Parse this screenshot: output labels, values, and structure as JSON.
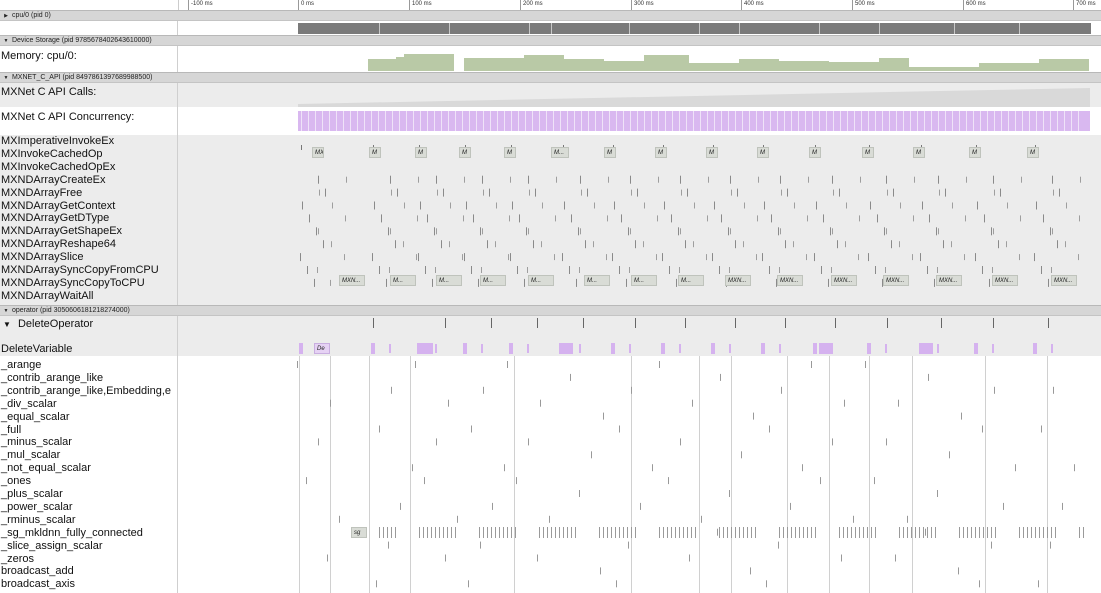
{
  "ruler": {
    "ticks": [
      {
        "label": "-100 ms",
        "x": 188
      },
      {
        "label": "0 ms",
        "x": 298
      },
      {
        "label": "100 ms",
        "x": 409
      },
      {
        "label": "200 ms",
        "x": 520
      },
      {
        "label": "300 ms",
        "x": 631
      },
      {
        "label": "400 ms",
        "x": 741
      },
      {
        "label": "500 ms",
        "x": 852
      },
      {
        "label": "600 ms",
        "x": 963
      },
      {
        "label": "700 ms",
        "x": 1073
      }
    ]
  },
  "processes": {
    "cpu": {
      "title": "cpu/0 (pid 0)"
    },
    "device_storage": {
      "title": "Device Storage (pid 9785678402643610000)",
      "track_label": "Memory: cpu/0:"
    },
    "mxnet": {
      "title": "MXNET_C_API (pid 8497861397689988500)",
      "calls_label": "MXNet C API Calls:",
      "concurrency_label": "MXNet C API Concurrency:",
      "functions": [
        "MXImperativeInvokeEx",
        "MXInvokeCachedOp",
        "MXInvokeCachedOpEx",
        "MXNDArrayCreateEx",
        "MXNDArrayFree",
        "MXNDArrayGetContext",
        "MXNDArrayGetDType",
        "MXNDArrayGetShapeEx",
        "MXNDArrayReshape64",
        "MXNDArraySlice",
        "MXNDArraySyncCopyFromCPU",
        "MXNDArraySyncCopyToCPU",
        "MXNDArrayWaitAll"
      ],
      "invoke_slices": [
        "MX",
        "M",
        "M",
        "M",
        "M",
        "M...",
        "M",
        "M",
        "M",
        "M",
        "M",
        "M",
        "M",
        "M",
        "M"
      ],
      "copy_slices": [
        "MXN...",
        "M...",
        "M...",
        "M...",
        "M...",
        "M...",
        "M...",
        "M...",
        "MXN...",
        "MXN...",
        "MXN...",
        "MXN...",
        "MXN...",
        "MXN...",
        "MXN..."
      ]
    },
    "operator": {
      "title": "operator (pid 3050606181218274000)",
      "group_label": "DeleteOperator",
      "delete_variable_label": "DeleteVariable",
      "delete_slice": "De",
      "sg_slice": "sg",
      "ops": [
        "_arange",
        "_contrib_arange_like",
        "_contrib_arange_like,Embedding,e",
        "_div_scalar",
        "_equal_scalar",
        "_full",
        "_minus_scalar",
        "_mul_scalar",
        "_not_equal_scalar",
        "_ones",
        "_plus_scalar",
        "_power_scalar",
        "_rminus_scalar",
        "_sg_mkldnn_fully_connected",
        "_slice_assign_scalar",
        "_zeros",
        "broadcast_add",
        "broadcast_axis"
      ]
    }
  },
  "colors": {
    "cpu_slice": "#7a7a7a",
    "memory_fill": "#b9c9a6",
    "calls_fill": "#d9d9d9",
    "concurrency_fill": "#d9b8f0",
    "slice_box": "#d9dcd6"
  },
  "icons": {
    "expanded": "triangle-down-icon",
    "collapsed": "triangle-right-icon"
  }
}
